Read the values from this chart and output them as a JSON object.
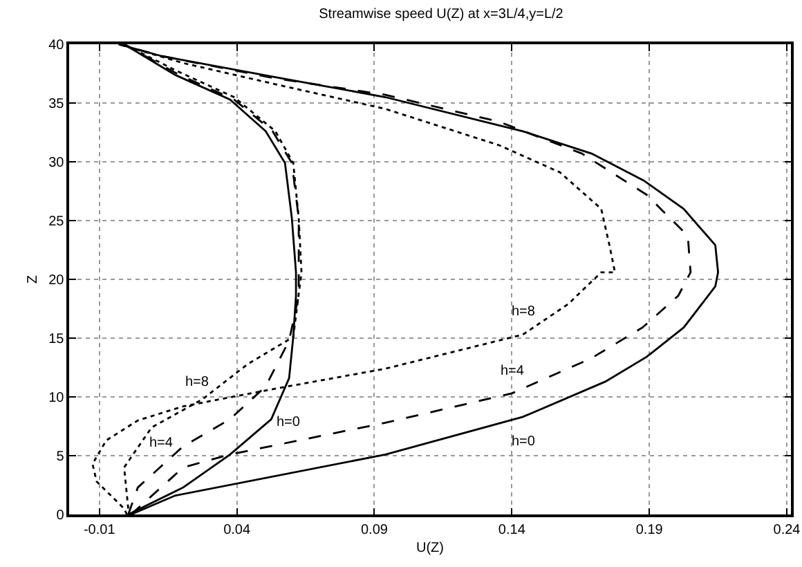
{
  "chart_data": {
    "type": "line",
    "title": "Streamwise speed U(Z) at x=3L/4,y=L/2",
    "xlabel": "U(Z)",
    "ylabel": "Z",
    "xlim": [
      -0.021,
      0.2415
    ],
    "xticks": [
      -0.01,
      0.04,
      0.09,
      0.14,
      0.19,
      0.24
    ],
    "ylim": [
      0,
      40
    ],
    "yticks": [
      0,
      5,
      10,
      15,
      20,
      25,
      30,
      35,
      40
    ],
    "grid": true,
    "legend": false,
    "marker": "none",
    "series": [
      {
        "name": "h=0",
        "color": "#000000",
        "line_style": "solid",
        "x": [
          0.0015,
          0.0175,
          0.094,
          0.144,
          0.174,
          0.189,
          0.2025,
          0.214,
          0.215,
          0.214,
          0.2025,
          0.188,
          0.169,
          0.144,
          0.094,
          0.054,
          0.0125,
          -0.003
        ],
        "values": [
          0,
          1.6,
          5.1,
          8.3,
          11.3,
          13.4,
          15.9,
          19.4,
          20.6,
          22.9,
          26,
          28.4,
          30.7,
          32.6,
          35.5,
          37.2,
          39,
          40
        ]
      },
      {
        "name": "h=4",
        "color": "#000000",
        "line_style": "dashed",
        "x": [
          0.0015,
          0.0205,
          0.0375,
          0.094,
          0.14,
          0.169,
          0.1875,
          0.2005,
          0.205,
          0.204,
          0.189,
          0.1655,
          0.1355,
          0.094,
          0.054,
          0.0125,
          -0.003
        ],
        "values": [
          0,
          4,
          5.1,
          7.8,
          10.3,
          13.3,
          15.9,
          18.6,
          20.6,
          23.7,
          27.2,
          30.7,
          33.4,
          35.7,
          37.1,
          39,
          40
        ]
      },
      {
        "name": "h=8",
        "color": "#000000",
        "line_style": "dotted",
        "x": [
          0.0,
          -0.001,
          -0.011,
          -0.0125,
          -0.0075,
          0.004,
          0.0205,
          0.054,
          0.094,
          0.144,
          0.1605,
          0.1725,
          0.1775,
          0.1755,
          0.1725,
          0.1575,
          0.1355,
          0.094,
          0.054,
          0.0205,
          -0.003
        ],
        "values": [
          0,
          0.5,
          2.8,
          4.3,
          6.3,
          8,
          9.2,
          10.7,
          12.4,
          15.3,
          17.9,
          20.6,
          20.6,
          22.9,
          26,
          29.1,
          31.4,
          34.5,
          36.6,
          38.4,
          40
        ]
      },
      {
        "name": "h=0",
        "color": "#000000",
        "line_style": "solid",
        "x": [
          0.0005,
          0.0205,
          0.0375,
          0.0525,
          0.059,
          0.0605,
          0.0615,
          0.0615,
          0.06,
          0.0575,
          0.0505,
          0.0375,
          0.0175,
          -0.001
        ],
        "values": [
          0,
          2.3,
          5.1,
          8.1,
          11.6,
          15.1,
          18.6,
          20.6,
          25.2,
          29.9,
          32.6,
          35.3,
          37.4,
          40
        ]
      },
      {
        "name": "h=4",
        "color": "#000000",
        "line_style": "dashed",
        "x": [
          0.0005,
          0.004,
          0.0205,
          0.0375,
          0.0505,
          0.059,
          0.0625,
          0.0625,
          0.06,
          0.053,
          0.039,
          0.019,
          -0.001
        ],
        "values": [
          0,
          2.3,
          5.8,
          8.1,
          10.9,
          14.8,
          18.6,
          25.2,
          29.9,
          32.6,
          35.3,
          37.4,
          40
        ]
      },
      {
        "name": "h=8",
        "color": "#000000",
        "line_style": "dotted",
        "x": [
          0.0005,
          -0.001,
          0.009,
          0.0275,
          0.044,
          0.0605,
          0.0635,
          0.0625,
          0.0605,
          0.054,
          0.039,
          0.0175,
          -0.001
        ],
        "values": [
          0.5,
          4,
          7.4,
          9.8,
          12.8,
          15.1,
          20.6,
          25.2,
          29.9,
          32.6,
          35.5,
          37.8,
          40
        ]
      }
    ]
  }
}
